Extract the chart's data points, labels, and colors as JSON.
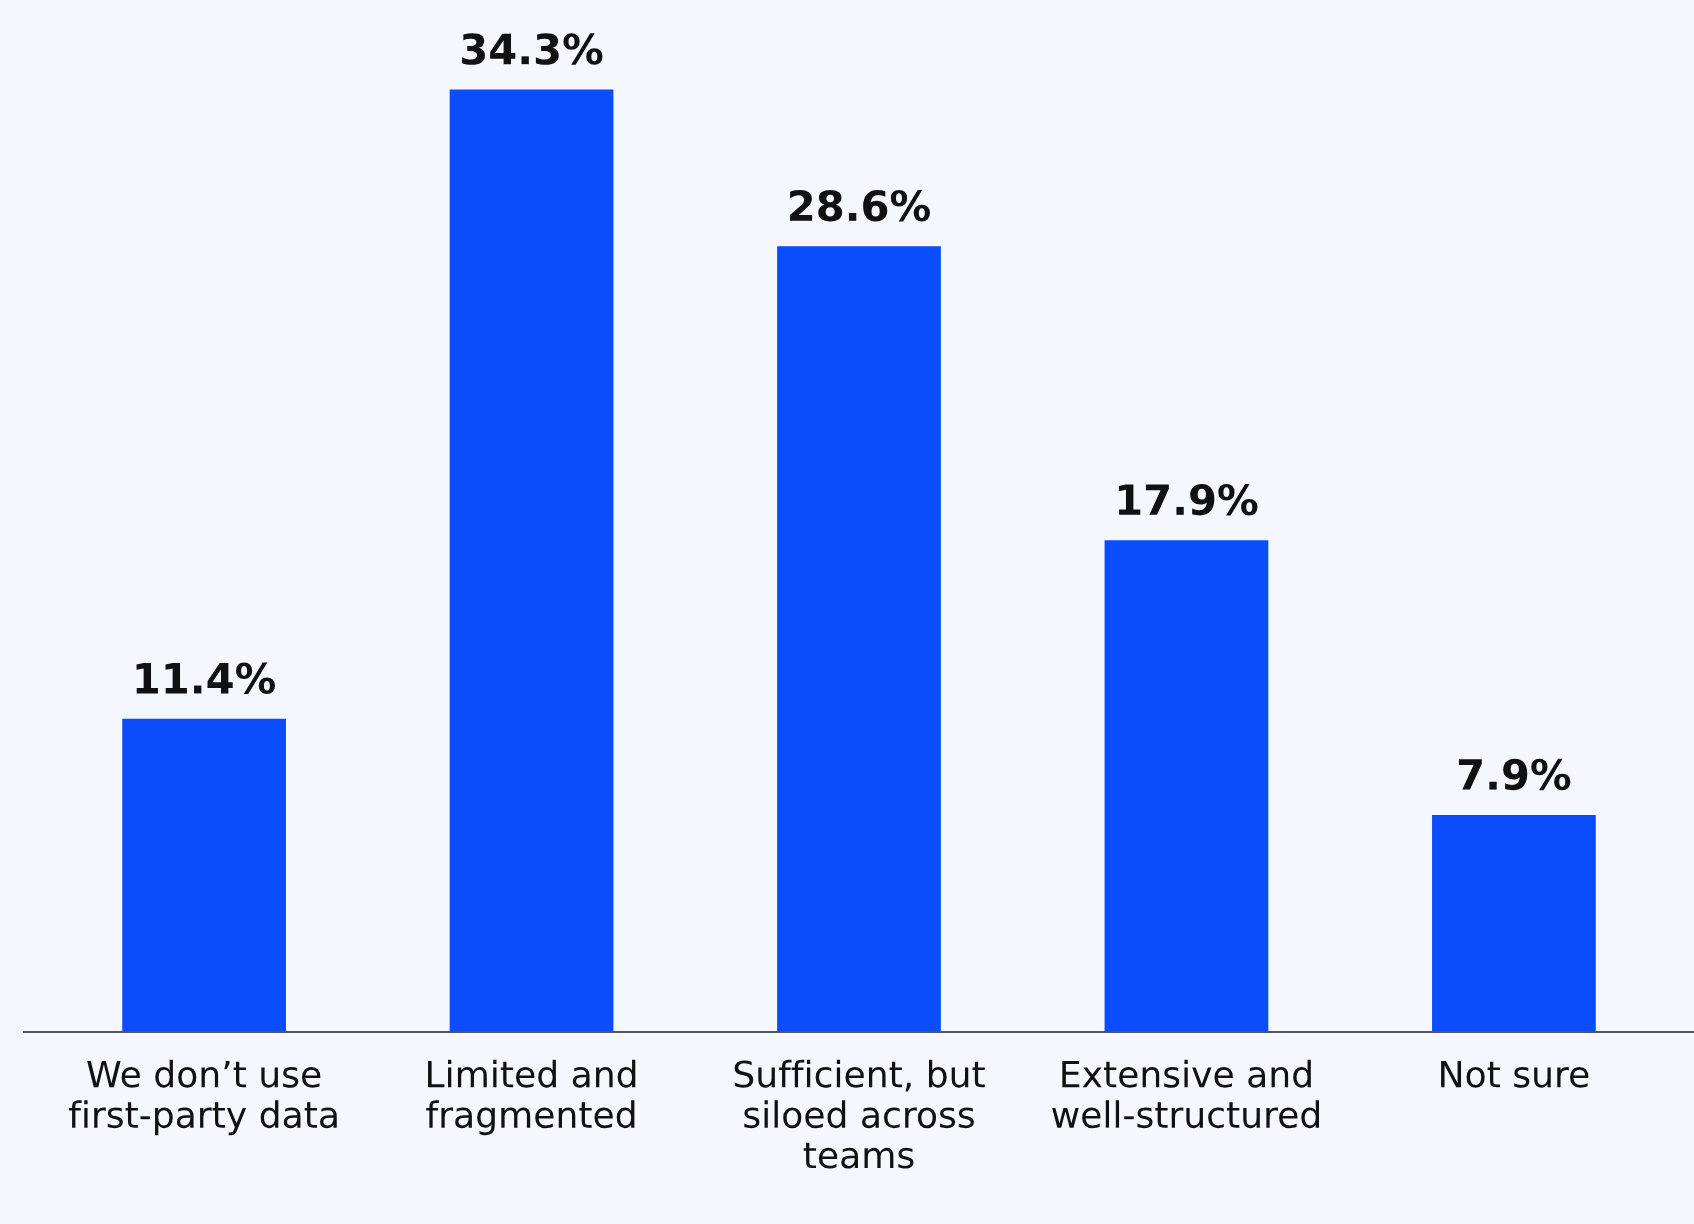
{
  "chart_data": {
    "type": "bar",
    "categories": [
      "We don’t use\nfirst-party data",
      "Limited and\nfragmented",
      "Sufficient, but\nsiloed across\nteams",
      "Extensive and\nwell-structured",
      "Not sure"
    ],
    "values": [
      11.4,
      34.3,
      28.6,
      17.9,
      7.9
    ],
    "value_labels": [
      "11.4%",
      "34.3%",
      "28.6%",
      "17.9%",
      "7.9%"
    ],
    "color": "#0a4dfb",
    "grid": false,
    "legend": false
  }
}
